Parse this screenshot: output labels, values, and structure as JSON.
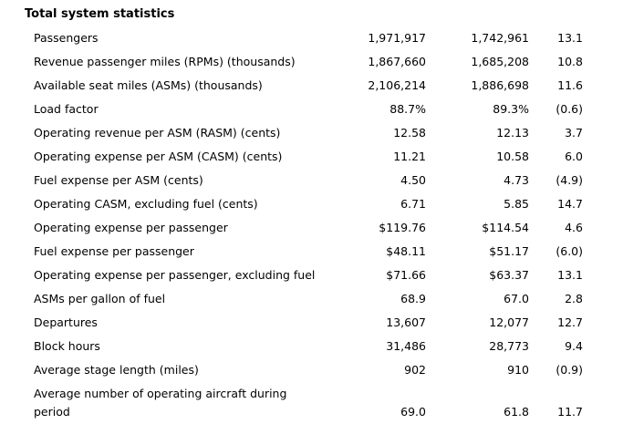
{
  "title": "Total system statistics",
  "rows": [
    {
      "label": "Passengers",
      "v1": "1,971,917",
      "v2": "1,742,961",
      "v3": "13.1"
    },
    {
      "label": "Revenue passenger miles (RPMs) (thousands)",
      "v1": "1,867,660",
      "v2": "1,685,208",
      "v3": "10.8"
    },
    {
      "label": "Available seat miles (ASMs) (thousands)",
      "v1": "2,106,214",
      "v2": "1,886,698",
      "v3": "11.6"
    },
    {
      "label": "Load factor",
      "v1": "88.7%",
      "v2": "89.3%",
      "v3": "(0.6)"
    },
    {
      "label": "Operating revenue per ASM (RASM) (cents)",
      "v1": "12.58",
      "v2": "12.13",
      "v3": "3.7"
    },
    {
      "label": "Operating expense per ASM (CASM) (cents)",
      "v1": "11.21",
      "v2": "10.58",
      "v3": "6.0"
    },
    {
      "label": "Fuel expense per ASM (cents)",
      "v1": "4.50",
      "v2": "4.73",
      "v3": "(4.9)"
    },
    {
      "label": "Operating CASM, excluding fuel (cents)",
      "v1": "6.71",
      "v2": "5.85",
      "v3": "14.7"
    },
    {
      "label": "Operating expense per passenger",
      "v1": "$119.76",
      "v2": "$114.54",
      "v3": "4.6"
    },
    {
      "label": "Fuel expense per passenger",
      "v1": "$48.11",
      "v2": "$51.17",
      "v3": "(6.0)"
    },
    {
      "label": "Operating expense per passenger, excluding fuel",
      "v1": "$71.66",
      "v2": "$63.37",
      "v3": "13.1"
    },
    {
      "label": "ASMs per gallon of fuel",
      "v1": "68.9",
      "v2": "67.0",
      "v3": "2.8"
    },
    {
      "label": "Departures",
      "v1": "13,607",
      "v2": "12,077",
      "v3": "12.7"
    },
    {
      "label": "Block hours",
      "v1": "31,486",
      "v2": "28,773",
      "v3": "9.4"
    },
    {
      "label": "Average stage length (miles)",
      "v1": "902",
      "v2": "910",
      "v3": "(0.9)"
    }
  ],
  "last_row": {
    "label_line1": "Average number of operating aircraft during",
    "label_line2": "period",
    "v1": "69.0",
    "v2": "61.8",
    "v3": "11.7"
  }
}
